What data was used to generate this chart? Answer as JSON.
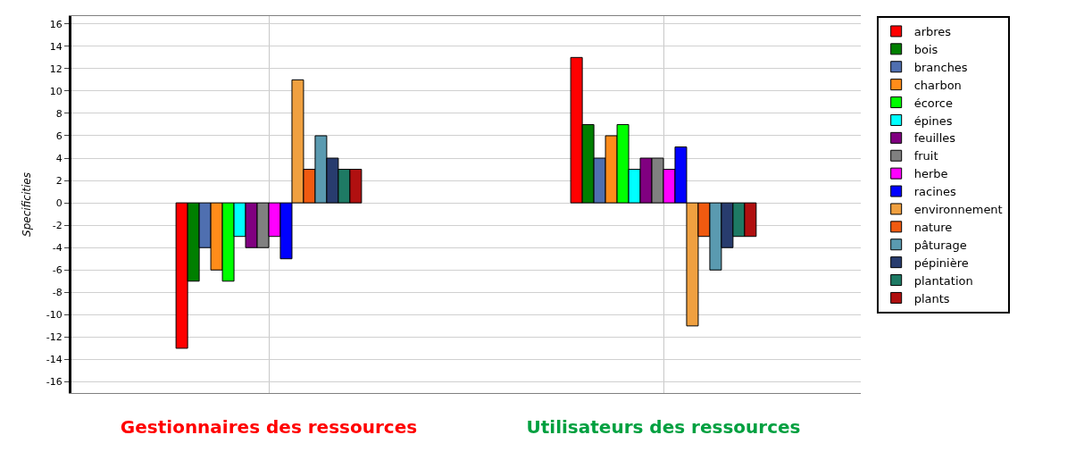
{
  "chart_data": {
    "type": "bar",
    "ylabel": "Specificities",
    "categories": [
      "Gestionnaires des ressources",
      "Utilisateurs des ressources"
    ],
    "ylim": [
      -17,
      16.7
    ],
    "yticks": [
      -16,
      -14,
      -12,
      -10,
      -8,
      -6,
      -4,
      -2,
      0,
      2,
      4,
      6,
      8,
      10,
      12,
      14,
      16
    ],
    "grid": true,
    "legend": "right",
    "series": [
      {
        "name": "arbres",
        "color": "#ff0000",
        "values": [
          -13,
          13
        ]
      },
      {
        "name": "bois",
        "color": "#007f00",
        "values": [
          -7,
          7
        ]
      },
      {
        "name": "branches",
        "color": "#4f6fb0",
        "values": [
          -4,
          4
        ]
      },
      {
        "name": "charbon",
        "color": "#ff8c1a",
        "values": [
          -6,
          6
        ]
      },
      {
        "name": "écorce",
        "color": "#00ff00",
        "values": [
          -7,
          7
        ]
      },
      {
        "name": "épines",
        "color": "#00ffff",
        "values": [
          -3,
          3
        ]
      },
      {
        "name": "feuilles",
        "color": "#800080",
        "values": [
          -4,
          4
        ]
      },
      {
        "name": "fruit",
        "color": "#808080",
        "values": [
          -4,
          4
        ]
      },
      {
        "name": "herbe",
        "color": "#ff00ff",
        "values": [
          -3,
          3
        ]
      },
      {
        "name": "racines",
        "color": "#0000ff",
        "values": [
          -5,
          5
        ]
      },
      {
        "name": "environnement",
        "color": "#f0a040",
        "values": [
          11,
          -11
        ]
      },
      {
        "name": "nature",
        "color": "#f05a10",
        "values": [
          3,
          -3
        ]
      },
      {
        "name": "pâturage",
        "color": "#5a9ab0",
        "values": [
          6,
          -6
        ]
      },
      {
        "name": "pépinière",
        "color": "#283c6e",
        "values": [
          4,
          -4
        ]
      },
      {
        "name": "plantation",
        "color": "#1e7a64",
        "values": [
          3,
          -3
        ]
      },
      {
        "name": "plants",
        "color": "#b01010",
        "values": [
          3,
          -3
        ]
      }
    ]
  }
}
